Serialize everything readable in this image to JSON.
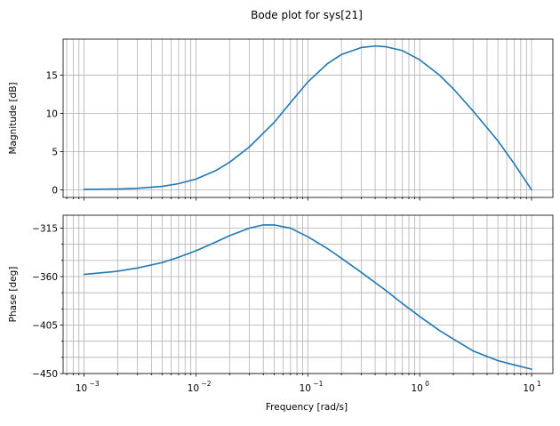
{
  "title": "Bode plot for sys[21]",
  "colors": {
    "series": "#1f77b4",
    "grid": "#b0b0b0"
  },
  "chart_data": [
    {
      "type": "line",
      "panel": "magnitude",
      "ylabel": "Magnitude [dB]",
      "xlabel": "",
      "xscale": "log",
      "xlim": [
        0.00065,
        15.5
      ],
      "ylim": [
        -1,
        19.7
      ],
      "yticks": [
        0,
        5,
        10,
        15
      ],
      "ytick_labels": [
        "0",
        "5",
        "10",
        "15"
      ],
      "grid": true,
      "series": [
        {
          "x": [
            0.001,
            0.002,
            0.003,
            0.005,
            0.007,
            0.01,
            0.015,
            0.02,
            0.03,
            0.05,
            0.07,
            0.1,
            0.15,
            0.2,
            0.3,
            0.4,
            0.5,
            0.7,
            1,
            1.5,
            2,
            3,
            5,
            7,
            10
          ],
          "y": [
            0.05,
            0.1,
            0.2,
            0.45,
            0.8,
            1.4,
            2.5,
            3.6,
            5.6,
            8.8,
            11.4,
            14.1,
            16.5,
            17.7,
            18.6,
            18.8,
            18.7,
            18.2,
            17.0,
            15.0,
            13.2,
            10.3,
            6.4,
            3.4,
            0.0
          ]
        }
      ]
    },
    {
      "type": "line",
      "panel": "phase",
      "ylabel": "Phase [deg]",
      "xlabel": "Frequency [rad/s]",
      "xscale": "log",
      "xlim": [
        0.00065,
        15.5
      ],
      "ylim": [
        -450,
        -303
      ],
      "yticks": [
        -315,
        -360,
        -405,
        -450
      ],
      "ytick_labels": [
        "−315",
        "−360",
        "−405",
        "−450"
      ],
      "xticks": [
        0.001,
        0.01,
        0.1,
        1,
        10
      ],
      "xtick_labels": [
        "10",
        "10",
        "10",
        "10",
        "10"
      ],
      "xtick_exponents": [
        "−3",
        "−2",
        "−1",
        "0",
        "1"
      ],
      "grid": true,
      "series": [
        {
          "x": [
            0.001,
            0.002,
            0.003,
            0.005,
            0.007,
            0.01,
            0.015,
            0.02,
            0.03,
            0.04,
            0.05,
            0.07,
            0.1,
            0.15,
            0.2,
            0.3,
            0.5,
            0.7,
            1,
            1.5,
            2,
            3,
            5,
            7,
            10
          ],
          "y": [
            -358,
            -355,
            -352,
            -347,
            -342,
            -336,
            -328,
            -322,
            -315,
            -312,
            -312,
            -315,
            -323,
            -334,
            -343,
            -356,
            -373,
            -385,
            -397,
            -410,
            -418,
            -429,
            -438,
            -442,
            -446
          ]
        }
      ]
    }
  ]
}
